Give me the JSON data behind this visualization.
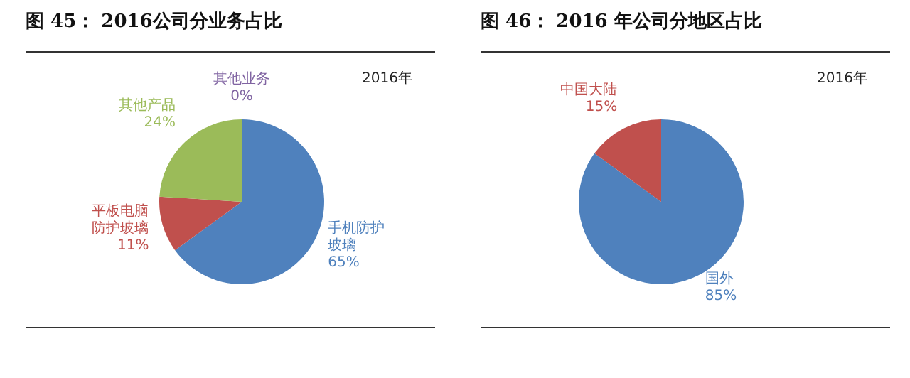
{
  "chart_data": [
    {
      "type": "pie",
      "title": "图 45： 2016公司分业务占比",
      "subtitle": "2016年",
      "categories": [
        "手机防护玻璃",
        "平板电脑防护玻璃",
        "其他产品",
        "其他业务"
      ],
      "values": [
        65,
        11,
        24,
        0
      ],
      "value_labels": [
        "65%",
        "11%",
        "24%",
        "0%"
      ],
      "colors": [
        "#4f81bd",
        "#c0504d",
        "#9bbb59",
        "#8064a2"
      ],
      "legend": false
    },
    {
      "type": "pie",
      "title": "图 46： 2016 年公司分地区占比",
      "subtitle": "2016年",
      "categories": [
        "国外",
        "中国大陆"
      ],
      "values": [
        85,
        15
      ],
      "value_labels": [
        "85%",
        "15%"
      ],
      "colors": [
        "#4f81bd",
        "#c0504d"
      ],
      "legend": false
    }
  ]
}
